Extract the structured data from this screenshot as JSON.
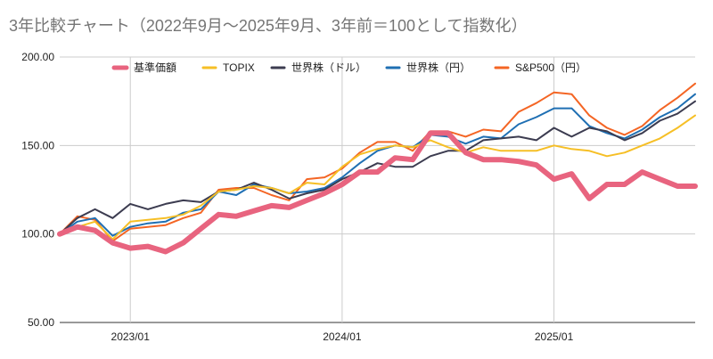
{
  "chart_data": {
    "type": "line",
    "title": "3年比較チャート（2022年9月～2025年9月、3年前＝100として指数化）",
    "xlabel": "",
    "ylabel": "",
    "ylim": [
      50,
      200
    ],
    "yticks": [
      "50.00",
      "100.00",
      "150.00",
      "200.00"
    ],
    "ytick_values": [
      50,
      100,
      150,
      200
    ],
    "xtick_labels": [
      "2023/01",
      "2024/01",
      "2025/01"
    ],
    "xtick_dates": [
      "2023-01",
      "2024-01",
      "2025-01"
    ],
    "grid": true,
    "legend_position": "top",
    "x": [
      "2022-09",
      "2022-10",
      "2022-11",
      "2022-12",
      "2023-01",
      "2023-02",
      "2023-03",
      "2023-04",
      "2023-05",
      "2023-06",
      "2023-07",
      "2023-08",
      "2023-09",
      "2023-10",
      "2023-11",
      "2023-12",
      "2024-01",
      "2024-02",
      "2024-03",
      "2024-04",
      "2024-05",
      "2024-06",
      "2024-07",
      "2024-08",
      "2024-09",
      "2024-10",
      "2024-11",
      "2024-12",
      "2025-01",
      "2025-02",
      "2025-03",
      "2025-04",
      "2025-05",
      "2025-06",
      "2025-07",
      "2025-08",
      "2025-09"
    ],
    "series": [
      {
        "name": "基準価額",
        "color": "#e8647f",
        "values": [
          100,
          104,
          102,
          95,
          92,
          93,
          90,
          95,
          103,
          111,
          110,
          113,
          116,
          115,
          119,
          123,
          128,
          135,
          135,
          143,
          142,
          157,
          157,
          146,
          142,
          142,
          141,
          139,
          131,
          134,
          120,
          128,
          128,
          135,
          131,
          127,
          127
        ]
      },
      {
        "name": "TOPIX",
        "color": "#f6bf26",
        "values": [
          100,
          104,
          107,
          97,
          107,
          108,
          109,
          111,
          116,
          124,
          125,
          127,
          126,
          123,
          129,
          128,
          138,
          145,
          148,
          150,
          149,
          153,
          149,
          146,
          149,
          147,
          147,
          147,
          150,
          148,
          147,
          144,
          146,
          150,
          154,
          160,
          167
        ]
      },
      {
        "name": "世界株（ドル）",
        "color": "#3c3c50",
        "values": [
          100,
          109,
          114,
          109,
          117,
          114,
          117,
          119,
          118,
          124,
          125,
          129,
          125,
          120,
          123,
          125,
          131,
          135,
          140,
          138,
          138,
          144,
          147,
          147,
          153,
          154,
          155,
          153,
          160,
          155,
          160,
          158,
          153,
          157,
          164,
          168,
          175
        ]
      },
      {
        "name": "世界株（円）",
        "color": "#1f6fb3",
        "values": [
          100,
          107,
          109,
          99,
          104,
          106,
          107,
          112,
          114,
          124,
          122,
          128,
          126,
          123,
          124,
          126,
          132,
          140,
          147,
          150,
          149,
          156,
          155,
          151,
          155,
          154,
          162,
          166,
          171,
          171,
          161,
          157,
          154,
          159,
          166,
          171,
          179
        ]
      },
      {
        "name": "S&P500（円）",
        "color": "#f46524",
        "values": [
          100,
          110,
          108,
          96,
          103,
          104,
          105,
          109,
          112,
          125,
          126,
          126,
          122,
          119,
          131,
          132,
          137,
          146,
          152,
          152,
          147,
          158,
          158,
          155,
          159,
          158,
          169,
          174,
          180,
          179,
          167,
          160,
          156,
          161,
          170,
          177,
          185
        ]
      }
    ]
  }
}
